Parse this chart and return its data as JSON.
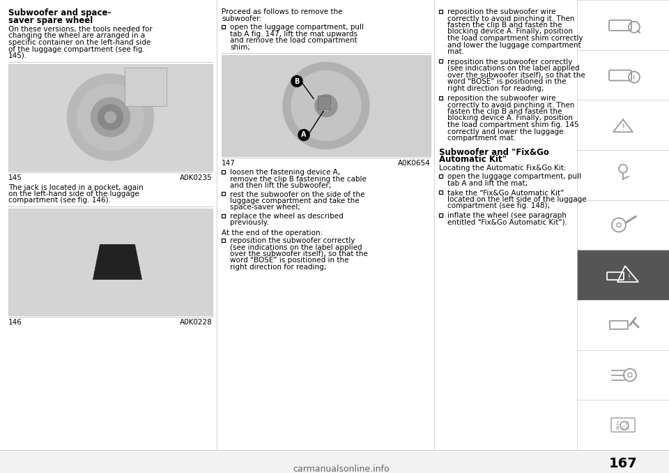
{
  "bg_color": "#ffffff",
  "page_number": "167",
  "watermark": "carmanualsonline.info",
  "col1": {
    "heading1": "Subwoofer and space-",
    "heading2": "saver spare wheel",
    "para1": [
      "On these versions, the tools needed for",
      "changing the wheel are arranged in a",
      "specific container on the left-hand side",
      "of the luggage compartment (see fig.",
      "145)."
    ],
    "fig145_label": "145",
    "fig145_code": "A0K0235",
    "para2": [
      "The jack is located in a pocket, again",
      "on the left-hand side of the luggage",
      "compartment (see fig. 146)."
    ],
    "fig146_label": "146",
    "fig146_code": "A0K0228"
  },
  "col2": {
    "intro": [
      "Proceed as follows to remove the",
      "subwoofer:"
    ],
    "bullet1": [
      "open the luggage compartment, pull",
      "tab A fig. 147, lift the mat upwards",
      "and remove the load compartment",
      "shim;"
    ],
    "fig147_label": "147",
    "fig147_code": "A0K0654",
    "bullet2": [
      "loosen the fastening device A,",
      "remove the clip B fastening the cable",
      "and then lift the subwoofer;"
    ],
    "bullet3": [
      "rest the subwoofer on the side of the",
      "luggage compartment and take the",
      "space-saver wheel;"
    ],
    "bullet4": [
      "replace the wheel as described",
      "previously."
    ],
    "at_end": "At the end of the operation:",
    "bullet5": [
      "reposition the subwoofer correctly",
      "(see indications on the label applied",
      "over the subwoofer itself), so that the",
      "word “BOSE” is positioned in the",
      "right direction for reading;"
    ]
  },
  "col3": {
    "bullet1": [
      "reposition the subwoofer wire",
      "correctly to avoid pinching it. Then",
      "fasten the clip B and fasten the",
      "blocking device A. Finally, position",
      "the load compartment shim correctly",
      "and lower the luggage compartment",
      "mat."
    ],
    "bullet2": [
      "reposition the subwoofer correctly",
      "(see indications on the label applied",
      "over the subwoofer itself), so that the",
      "word “BOSE” is positioned in the",
      "right direction for reading;"
    ],
    "bullet3": [
      "reposition the subwoofer wire",
      "correctly to avoid pinching it. Then",
      "fasten the clip B and fasten the",
      "blocking device A. Finally, position",
      "the load compartment shim fig. 145",
      "correctly and lower the luggage",
      "compartment mat."
    ],
    "heading2a": "Subwoofer and \"Fix&Go",
    "heading2b": "Automatic Kit\"",
    "para2": "Locating the Automatic Fix&Go Kit:",
    "bullet4": [
      "open the luggage compartment, pull",
      "tab A and lift the mat;"
    ],
    "bullet5": [
      "take the “Fix&Go Automatic Kit”",
      "located on the left side of the luggage",
      "compartment (see fig. 148);"
    ],
    "bullet6": [
      "inflate the wheel (see paragraph",
      "entitled “Fix&Go Automatic Kit”)."
    ]
  },
  "sidebar_active": 5,
  "light_gray": "#cccccc",
  "dark_gray": "#555555",
  "med_gray": "#888888",
  "icon_gray": "#999999"
}
